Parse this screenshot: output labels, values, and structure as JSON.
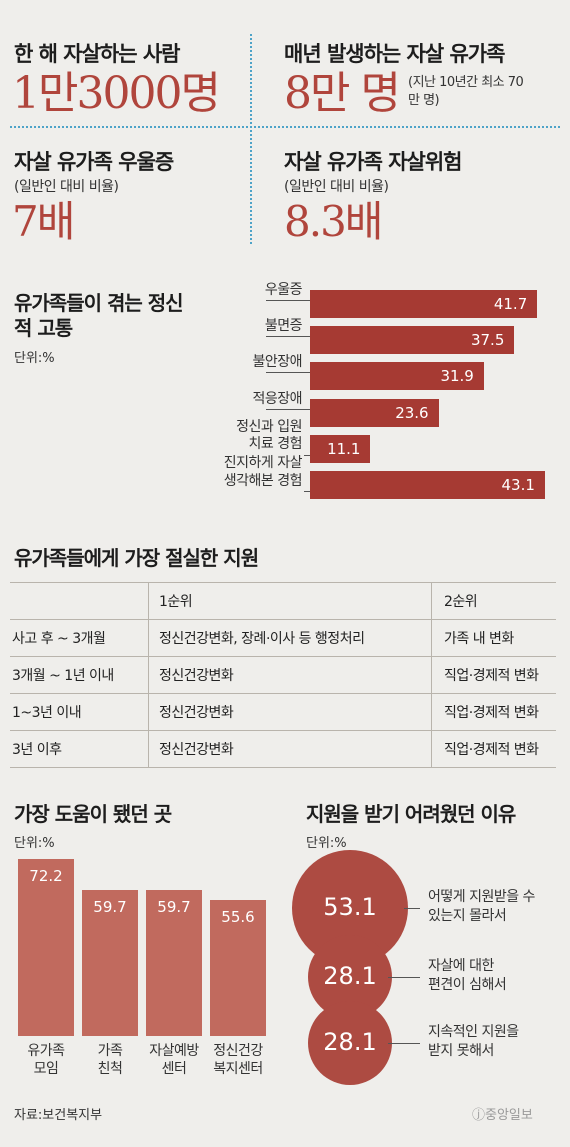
{
  "stats": [
    {
      "title": "한 해 자살하는 사람",
      "subtitle": "",
      "value": "1만3000명",
      "note": ""
    },
    {
      "title": "매년 발생하는 자살 유가족",
      "subtitle": "",
      "value": "8만 명",
      "note": "(지난 10년간 최소 70만 명)"
    },
    {
      "title": "자살 유가족 우울증",
      "subtitle": "(일반인 대비 비율)",
      "value": "7배",
      "note": ""
    },
    {
      "title": "자살 유가족 자살위험",
      "subtitle": "(일반인 대비 비율)",
      "value": "8.3배",
      "note": ""
    }
  ],
  "chart_data": [
    {
      "type": "bar",
      "orientation": "horizontal",
      "title": "유가족들이 겪는 정신적 고통",
      "unit": "단위:%",
      "categories": [
        "우울증",
        "불면증",
        "불안장애",
        "적응장애",
        "정신과 입원 치료 경험",
        "진지하게 자살 생각해본 경험"
      ],
      "values": [
        41.7,
        37.5,
        31.9,
        23.6,
        11.1,
        43.1
      ],
      "color": "#a63a33"
    },
    {
      "type": "table",
      "title": "유가족들에게 가장 절실한 지원",
      "columns": [
        "",
        "1순위",
        "2순위"
      ],
      "rows": [
        [
          "사고 후 ~ 3개월",
          "정신건강변화, 장례·이사 등 행정처리",
          "가족 내 변화"
        ],
        [
          "3개월 ~ 1년 이내",
          "정신건강변화",
          "직업·경제적 변화"
        ],
        [
          "1~3년 이내",
          "정신건강변화",
          "직업·경제적 변화"
        ],
        [
          "3년 이후",
          "정신건강변화",
          "직업·경제적 변화"
        ]
      ]
    },
    {
      "type": "bar",
      "orientation": "vertical",
      "title": "가장 도움이 됐던 곳",
      "unit": "단위:%",
      "categories": [
        "유가족 모임",
        "가족 친척",
        "자살예방 센터",
        "정신건강 복지센터"
      ],
      "values": [
        72.2,
        59.7,
        59.7,
        55.6
      ],
      "color": "#c16a5e"
    },
    {
      "type": "bubble",
      "title": "지원을 받기 어려웠던 이유",
      "unit": "단위:%",
      "categories": [
        "어떻게 지원받을 수 있는지 몰라서",
        "자살에 대한 편견이 심해서",
        "지속적인 지원을 받지 못해서"
      ],
      "values": [
        53.1,
        28.1,
        28.1
      ],
      "color": "#ad4b42"
    }
  ],
  "hbar_labels": [
    [
      "우울증"
    ],
    [
      "불면증"
    ],
    [
      "불안장애"
    ],
    [
      "적응장애"
    ],
    [
      "정신과 입원",
      "치료 경험"
    ],
    [
      "진지하게 자살",
      "생각해본 경험"
    ]
  ],
  "vbar_labels": [
    [
      "유가족",
      "모임"
    ],
    [
      "가족",
      "친척"
    ],
    [
      "자살예방",
      "센터"
    ],
    [
      "정신건강",
      "복지센터"
    ]
  ],
  "bubble_labels": [
    [
      "어떻게 지원받을 수",
      "있는지 몰라서"
    ],
    [
      "자살에 대한",
      "편견이 심해서"
    ],
    [
      "지속적인 지원을",
      "받지 못해서"
    ]
  ],
  "source": "자료:보건복지부",
  "logo": "ⓙ중앙일보"
}
